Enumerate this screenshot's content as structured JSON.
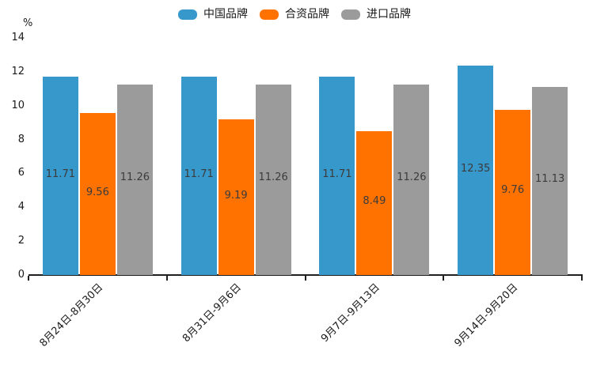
{
  "chart_data": {
    "type": "bar",
    "title": "",
    "ylabel": "%",
    "xlabel": "",
    "ylim": [
      0,
      14
    ],
    "yticks": [
      0,
      2,
      4,
      6,
      8,
      10,
      12,
      14
    ],
    "grid": false,
    "legend_position": "top-center",
    "value_labels": true,
    "categories": [
      "8月24日-8月30日",
      "8月31日-9月6日",
      "9月7日-9月13日",
      "9月14日-9月20日"
    ],
    "series": [
      {
        "name": "中国品牌",
        "color": "#3798CB",
        "values": [
          11.71,
          11.71,
          11.71,
          12.35
        ]
      },
      {
        "name": "合资品牌",
        "color": "#FF7200",
        "values": [
          9.56,
          9.19,
          8.49,
          9.76
        ]
      },
      {
        "name": "进口品牌",
        "color": "#9B9B9B",
        "values": [
          11.26,
          11.26,
          11.26,
          11.13
        ]
      }
    ]
  },
  "colors": {
    "background": "#ffffff",
    "axis": "#1f1f1f",
    "tick_label": "#1a1a1a",
    "value_label": "#3b3b3b"
  }
}
